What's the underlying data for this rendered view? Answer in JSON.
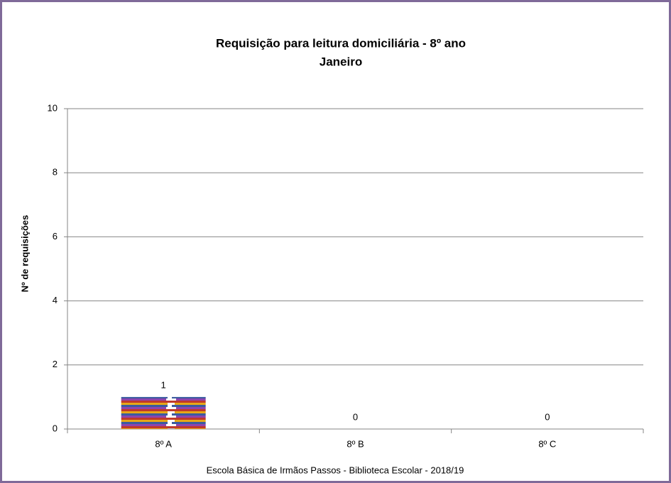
{
  "chart_data": {
    "type": "bar",
    "title": "Requisição para leitura domiciliária  - 8º ano",
    "subtitle": "Janeiro",
    "y_label": "Nº de requisições",
    "footer": "Escola Básica de Irmãos Passos - Biblioteca Escolar  - 2018/19",
    "categories": [
      "8º A",
      "8º B",
      "8º C"
    ],
    "values": [
      1,
      0,
      0
    ],
    "ylim": [
      0,
      10
    ],
    "yticks": [
      0,
      2,
      4,
      6,
      8,
      10
    ],
    "grid": true
  }
}
